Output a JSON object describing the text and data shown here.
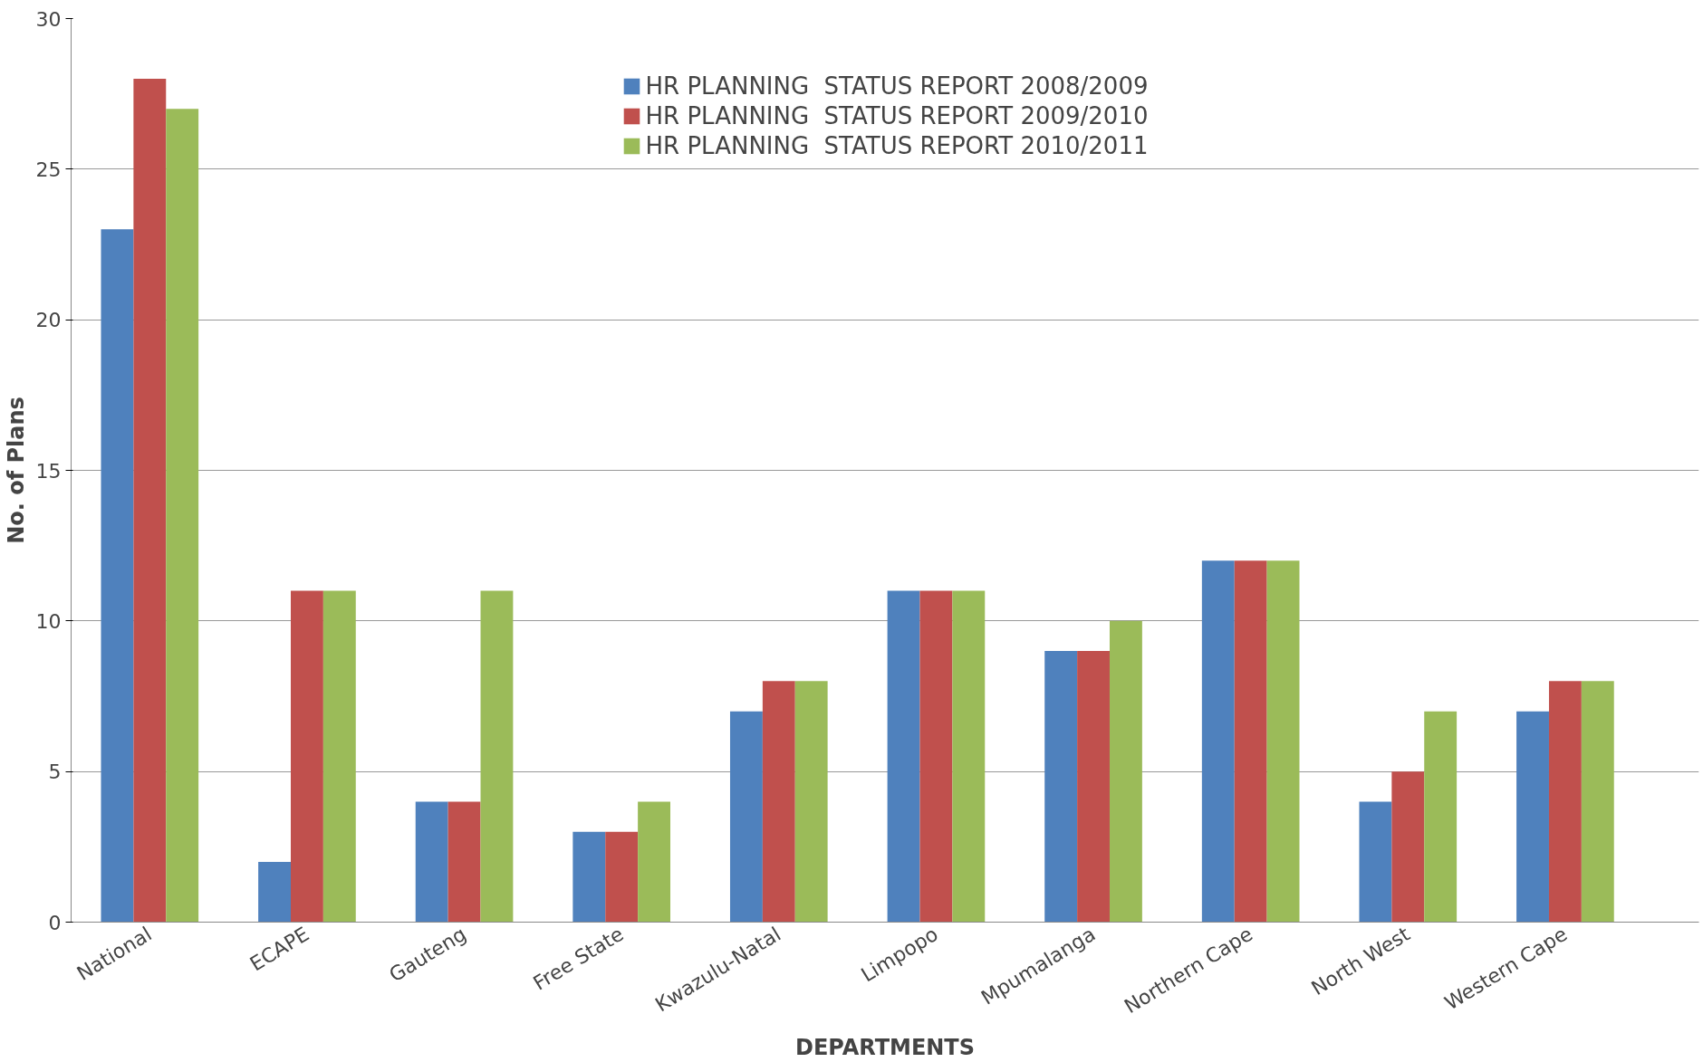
{
  "chart_data": {
    "type": "bar",
    "xlabel": "DEPARTMENTS",
    "ylabel": "No. of Plans",
    "categories": [
      "National",
      "ECAPE",
      "Gauteng",
      "Free State",
      "Kwazulu-Natal",
      "Limpopo",
      "Mpumalanga",
      "Northern Cape",
      "North West",
      "Western Cape"
    ],
    "series": [
      {
        "name": "HR PLANNING  STATUS REPORT 2008/2009",
        "color": "#4f81bd",
        "values": [
          23,
          2,
          4,
          3,
          7,
          11,
          9,
          12,
          4,
          7
        ]
      },
      {
        "name": "HR PLANNING  STATUS REPORT 2009/2010",
        "color": "#c0504d",
        "values": [
          28,
          11,
          4,
          3,
          8,
          11,
          9,
          12,
          5,
          8
        ]
      },
      {
        "name": "HR PLANNING  STATUS REPORT 2010/2011",
        "color": "#9bbb59",
        "values": [
          27,
          11,
          11,
          4,
          8,
          11,
          10,
          12,
          7,
          8
        ]
      }
    ],
    "ylim": [
      0,
      30
    ],
    "yticks": [
      0,
      5,
      10,
      15,
      20,
      25,
      30
    ],
    "grid": "y",
    "legend": "top"
  }
}
